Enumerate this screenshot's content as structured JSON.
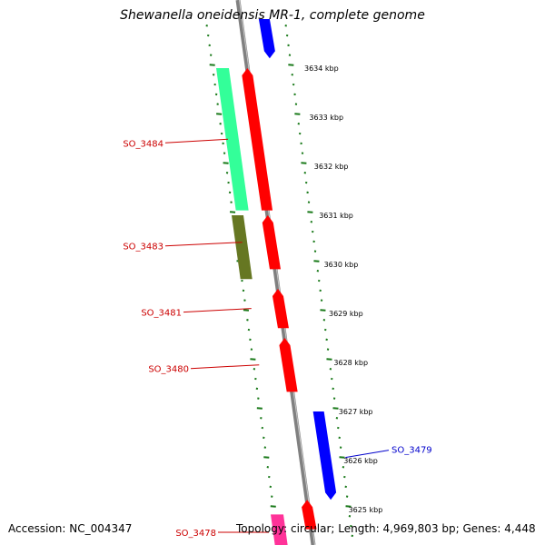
{
  "title": "Shewanella oneidensis MR-1, complete genome",
  "footer": {
    "accession": "Accession: NC_004347",
    "topology": "Topology: circular; Length: 4,969,803 bp; Genes: 4,448"
  },
  "colors": {
    "backbone": "#808080",
    "ticks": "#1a7a1a",
    "forward_gene": "#ff0000",
    "reverse_gene": "#0000ff",
    "cog_green": "#33ff99",
    "cog_olive": "#667722",
    "cog_pink": "#ff3399",
    "forward_label": "#cc0000",
    "reverse_label": "#0000cc"
  },
  "scale_labels": [
    {
      "kbp": 3634,
      "text": "3634 kbp"
    },
    {
      "kbp": 3633,
      "text": "3633 kbp"
    },
    {
      "kbp": 3632,
      "text": "3632 kbp"
    },
    {
      "kbp": 3631,
      "text": "3631 kbp"
    },
    {
      "kbp": 3630,
      "text": "3630 kbp"
    },
    {
      "kbp": 3629,
      "text": "3629 kbp"
    },
    {
      "kbp": 3628,
      "text": "3628 kbp"
    },
    {
      "kbp": 3627,
      "text": "3627 kbp"
    },
    {
      "kbp": 3626,
      "text": "3626 kbp"
    },
    {
      "kbp": 3625,
      "text": "3625 kbp"
    }
  ],
  "genes": [
    {
      "label": "SO_3484",
      "strand": "forward",
      "start_kbp": 3631.1,
      "end_kbp": 3634.0
    },
    {
      "label": "SO_3483",
      "strand": "forward",
      "start_kbp": 3629.9,
      "end_kbp": 3631.0
    },
    {
      "label": "SO_3481",
      "strand": "forward",
      "start_kbp": 3628.7,
      "end_kbp": 3629.5
    },
    {
      "label": "SO_3480",
      "strand": "forward",
      "start_kbp": 3627.4,
      "end_kbp": 3628.5
    },
    {
      "label": "SO_3479",
      "strand": "reverse",
      "start_kbp": 3625.2,
      "end_kbp": 3627.0
    },
    {
      "label": "",
      "strand": "reverse",
      "start_kbp": 3634.2,
      "end_kbp": 3635.0
    },
    {
      "label": "SO_3478",
      "strand": "forward",
      "start_kbp": 3624.6,
      "end_kbp": 3625.2
    }
  ]
}
